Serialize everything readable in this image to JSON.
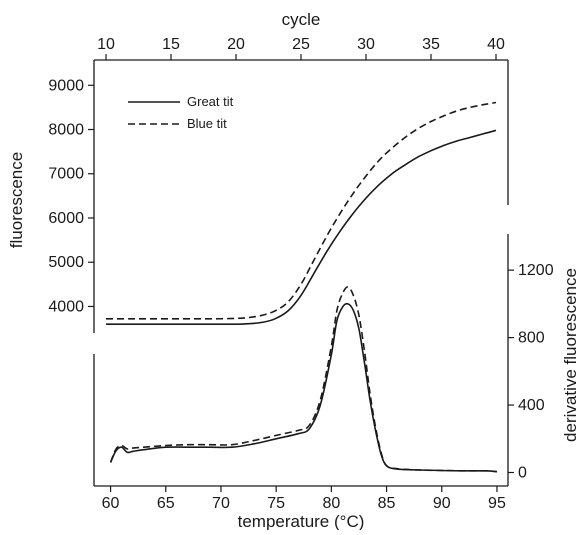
{
  "chart_data": {
    "type": "line",
    "top_axis": {
      "label": "cycle",
      "ticks": [
        10,
        15,
        20,
        25,
        30,
        35,
        40
      ],
      "range": [
        10,
        40
      ]
    },
    "bottom_axis": {
      "label": "temperature (°C)",
      "ticks": [
        60,
        65,
        70,
        75,
        80,
        85,
        90,
        95
      ],
      "range": [
        58.5,
        96
      ]
    },
    "left_axis": {
      "label": "fluorescence",
      "ticks": [
        4000,
        5000,
        6000,
        7000,
        8000,
        9000
      ],
      "range": [
        3400,
        9300
      ]
    },
    "right_axis": {
      "label": "derivative fluorescence",
      "ticks": [
        0,
        400,
        800,
        1200
      ],
      "range": [
        -80,
        1450
      ]
    },
    "legend": {
      "placement": "top-left",
      "entries": [
        {
          "label": "Great tit",
          "style": "solid"
        },
        {
          "label": "Blue tit",
          "style": "dashed"
        }
      ]
    },
    "amplification_series": [
      {
        "name": "Great tit",
        "style": "solid",
        "x_cycle": [
          10,
          12,
          14,
          16,
          18,
          20,
          21,
          22,
          23,
          24,
          25,
          26,
          27,
          28,
          29,
          30,
          31,
          32,
          33,
          34,
          35,
          36,
          37,
          38,
          39,
          40
        ],
        "y": [
          3600,
          3600,
          3600,
          3600,
          3600,
          3600,
          3610,
          3640,
          3720,
          3900,
          4250,
          4750,
          5250,
          5700,
          6100,
          6450,
          6750,
          7000,
          7200,
          7380,
          7520,
          7640,
          7740,
          7820,
          7900,
          7980
        ]
      },
      {
        "name": "Blue tit",
        "style": "dashed",
        "x_cycle": [
          10,
          12,
          14,
          16,
          18,
          20,
          21,
          22,
          23,
          24,
          25,
          26,
          27,
          28,
          29,
          30,
          31,
          32,
          33,
          34,
          35,
          36,
          37,
          38,
          39,
          40
        ],
        "y": [
          3720,
          3720,
          3720,
          3720,
          3720,
          3730,
          3750,
          3800,
          3900,
          4100,
          4500,
          5050,
          5600,
          6100,
          6550,
          6950,
          7300,
          7580,
          7820,
          8020,
          8180,
          8310,
          8420,
          8500,
          8560,
          8610
        ]
      }
    ],
    "melt_series": [
      {
        "name": "Great tit",
        "style": "solid",
        "x_temp": [
          60,
          60.5,
          61,
          61.5,
          62,
          63,
          65,
          67,
          69,
          71,
          73,
          75,
          77,
          78,
          79,
          80,
          80.5,
          81,
          81.5,
          82,
          82.5,
          83,
          83.5,
          84,
          84.5,
          85,
          86,
          88,
          90,
          92,
          94,
          95
        ],
        "y": [
          60,
          130,
          150,
          120,
          125,
          135,
          150,
          150,
          150,
          150,
          170,
          200,
          230,
          260,
          400,
          700,
          900,
          980,
          1000,
          960,
          850,
          650,
          430,
          250,
          110,
          40,
          20,
          15,
          12,
          10,
          10,
          5
        ]
      },
      {
        "name": "Blue tit",
        "style": "dashed",
        "x_temp": [
          60,
          60.5,
          61,
          61.5,
          62,
          63,
          65,
          67,
          69,
          71,
          73,
          75,
          77,
          78,
          79,
          80,
          80.5,
          81,
          81.5,
          82,
          82.5,
          83,
          83.5,
          84,
          84.5,
          85,
          86,
          88,
          90,
          92,
          94,
          95
        ],
        "y": [
          60,
          140,
          160,
          140,
          145,
          150,
          160,
          165,
          165,
          165,
          190,
          220,
          250,
          280,
          430,
          750,
          960,
          1060,
          1100,
          1050,
          930,
          720,
          470,
          270,
          120,
          40,
          22,
          15,
          12,
          10,
          10,
          5
        ]
      }
    ]
  }
}
